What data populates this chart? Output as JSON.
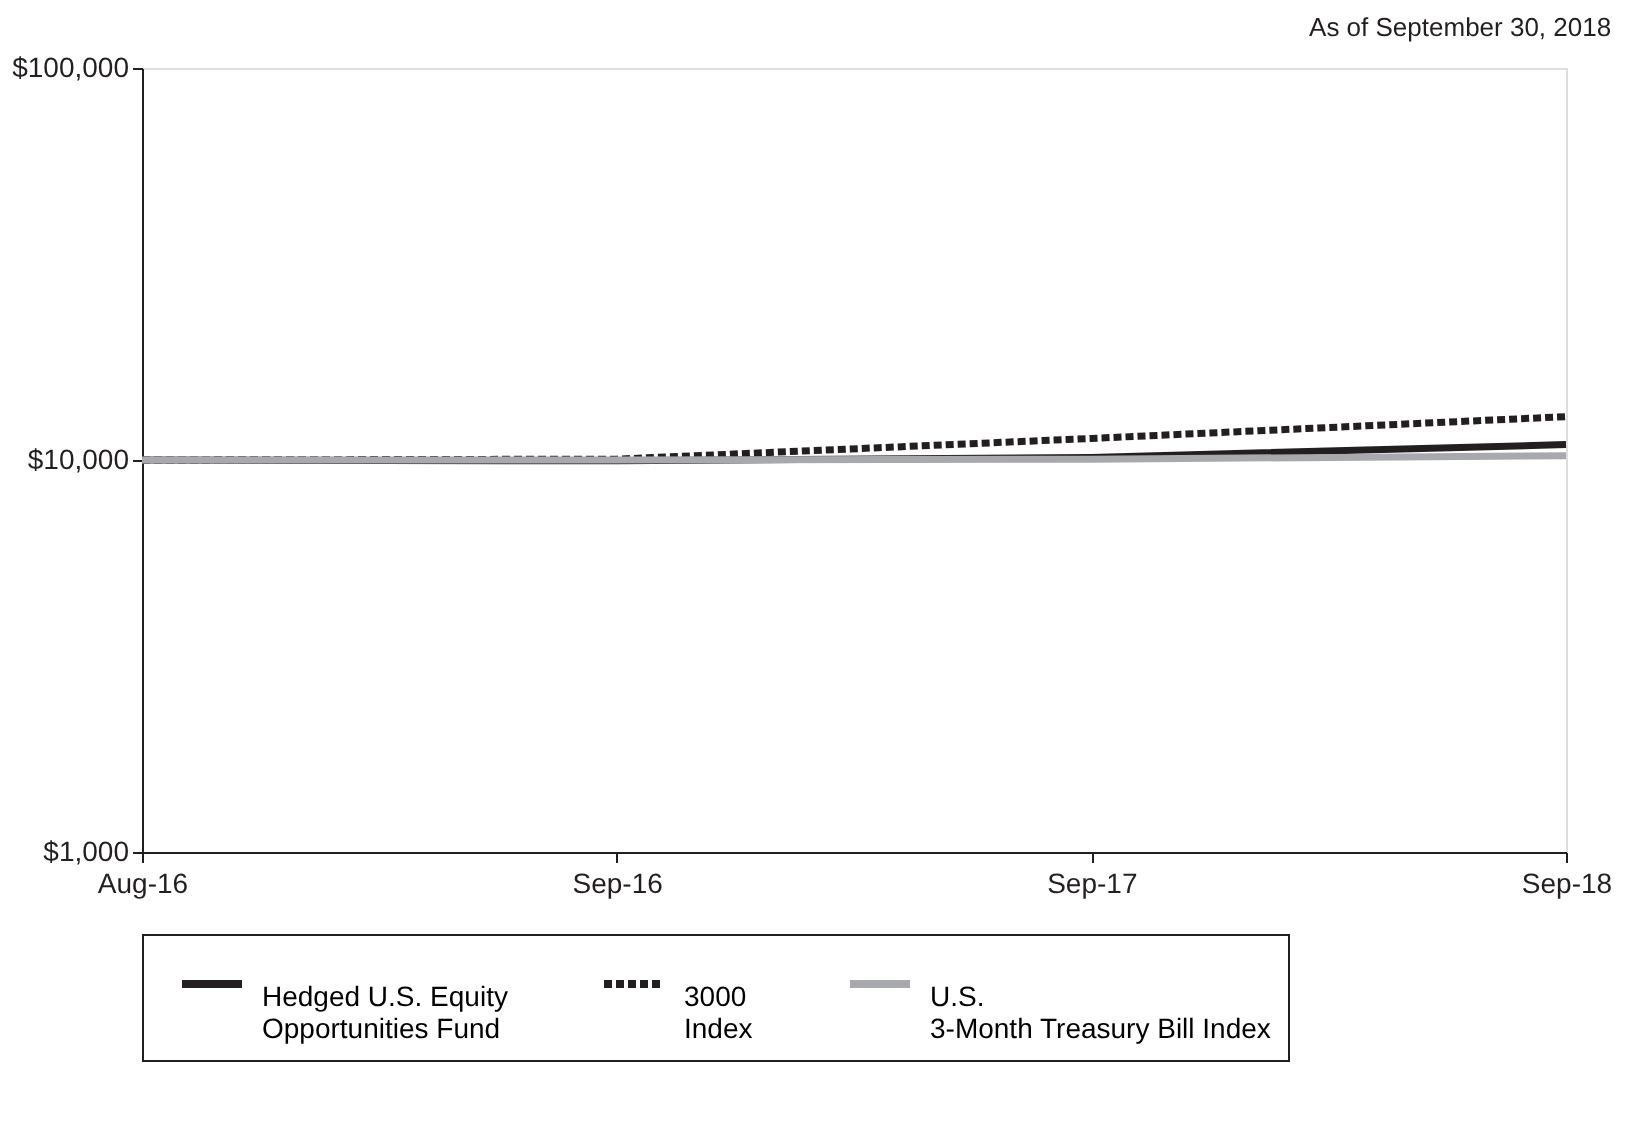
{
  "chart_data": {
    "type": "line",
    "annotations": [
      "As of September 30, 2018"
    ],
    "categories": [
      "Aug-16",
      "Sep-16",
      "Sep-17",
      "Sep-18"
    ],
    "series": [
      {
        "name": "Hedged U.S. Equity\nOpportunities Fund",
        "color": "#231f20",
        "line_style": "solid",
        "values": [
          10000,
          9950,
          10150,
          10950
        ]
      },
      {
        "name": "3000\nIndex",
        "color": "#231f20",
        "line_style": "dotted",
        "values": [
          10000,
          10050,
          11350,
          12900
        ]
      },
      {
        "name": "U.S.\n3-Month Treasury Bill Index",
        "color": "#a7a9ac",
        "line_style": "solid",
        "values": [
          10000,
          10000,
          10050,
          10250
        ]
      }
    ],
    "log": "y",
    "ylim": [
      1000,
      100000
    ],
    "yticks": [
      {
        "value": 1000,
        "label": "$1,000"
      },
      {
        "value": 10000,
        "label": "$10,000"
      },
      {
        "value": 100000,
        "label": "$100,000"
      }
    ],
    "grid": false,
    "legend": "bottom",
    "marker": "none"
  }
}
